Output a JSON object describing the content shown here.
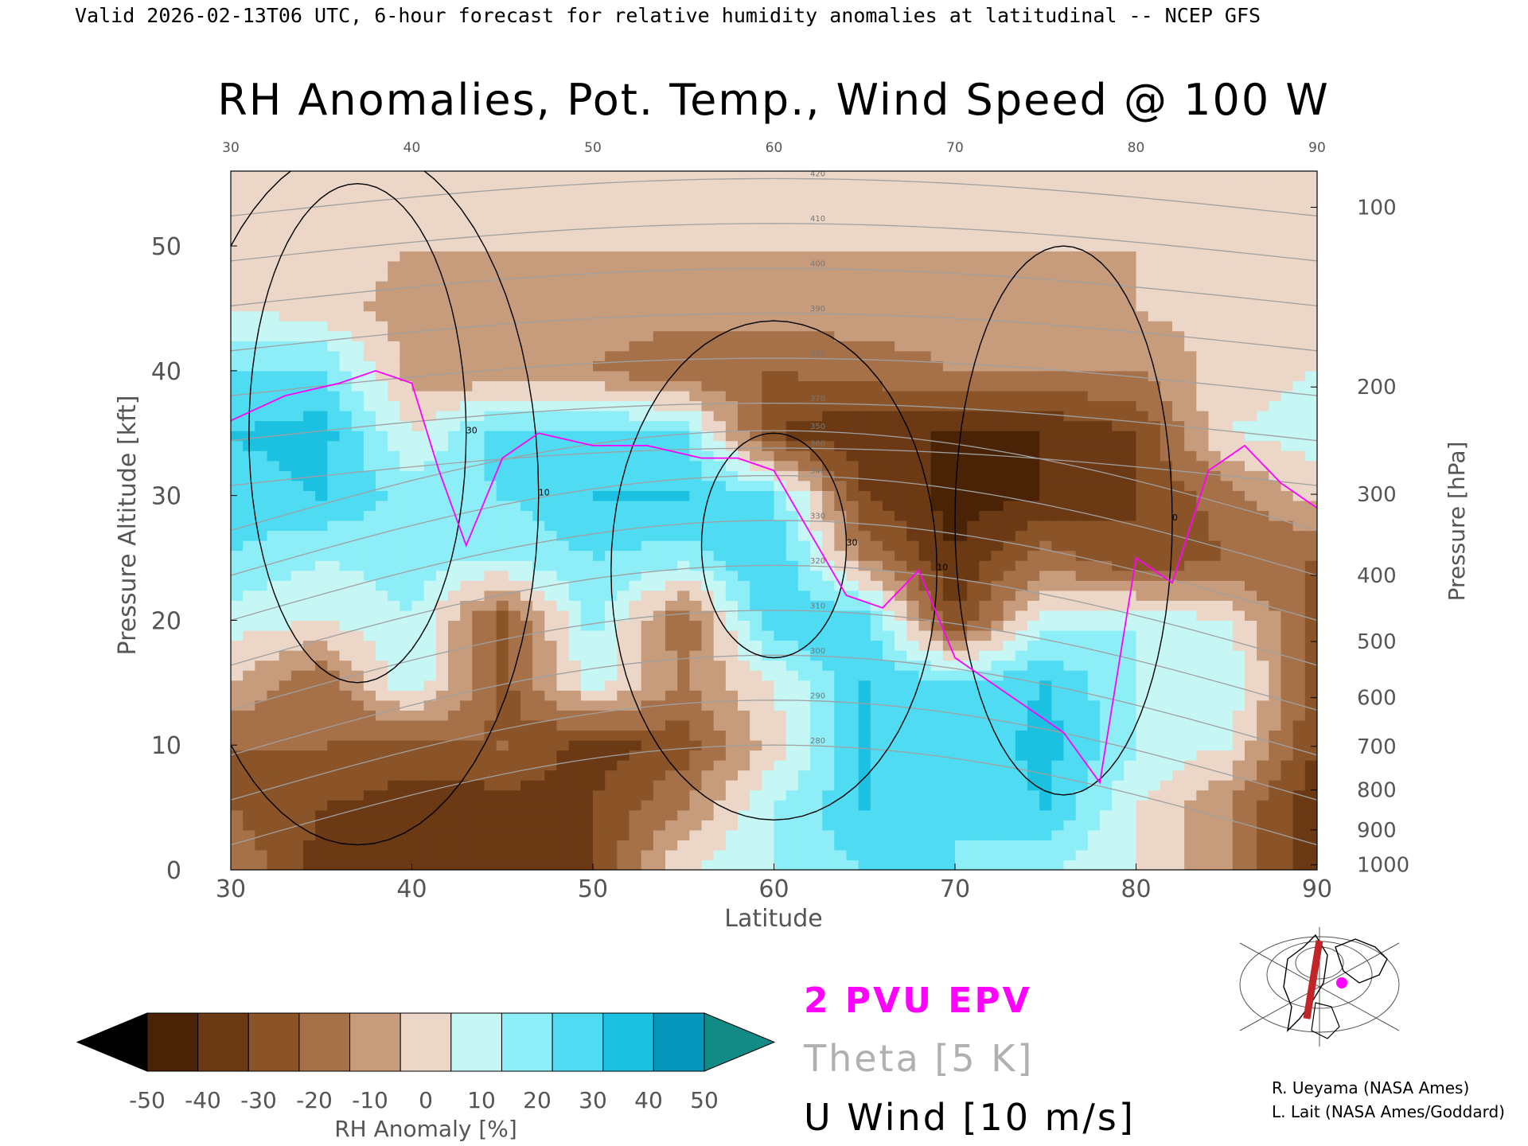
{
  "header": {
    "valid_line": "Valid 2026-02-13T06 UTC, 6-hour forecast for relative humidity anomalies at latitudinal -- NCEP GFS"
  },
  "chart_data": {
    "type": "heatmap",
    "title": "RH Anomalies, Pot. Temp., Wind Speed @ 100 W",
    "xlabel": "Latitude",
    "ylabel": "Pressure Altitude [kft]",
    "y2label": "Pressure [hPa]",
    "xlim": [
      30,
      90
    ],
    "ylim": [
      0,
      56
    ],
    "x_ticks": [
      "30",
      "40",
      "50",
      "60",
      "70",
      "80",
      "90"
    ],
    "y_ticks": [
      "0",
      "10",
      "20",
      "30",
      "40",
      "50"
    ],
    "y_tick_values": [
      0,
      10,
      20,
      30,
      40,
      50
    ],
    "pressure_ticks": [
      "100",
      "200",
      "300",
      "400",
      "500",
      "600",
      "700",
      "800",
      "900",
      "1000"
    ],
    "pressure_tick_kft": [
      53.1,
      38.7,
      30.1,
      23.6,
      18.3,
      13.8,
      9.9,
      6.4,
      3.2,
      0.4
    ],
    "colorbar": {
      "label": "RH Anomaly [%]",
      "tick_labels": [
        "-50",
        "-40",
        "-30",
        "-20",
        "-10",
        "0",
        "10",
        "20",
        "30",
        "40",
        "50"
      ],
      "colors": [
        "#4a2306",
        "#6b3914",
        "#8a5428",
        "#a67048",
        "#c69c7c",
        "#ecd6c8",
        "#c6f7f5",
        "#8eeef7",
        "#4fdcf2",
        "#1cc0e0",
        "#0696bc"
      ],
      "under_color": "#000000",
      "over_color": "#128a86"
    },
    "rh_anomaly_grid": {
      "lat": [
        30,
        35,
        40,
        45,
        50,
        55,
        60,
        65,
        70,
        75,
        80,
        85,
        90
      ],
      "kft": [
        0,
        5,
        10,
        15,
        20,
        25,
        30,
        35,
        40,
        45,
        50,
        55
      ],
      "values": [
        [
          -10,
          -35,
          -40,
          -30,
          -30,
          10,
          20,
          30,
          30,
          20,
          10,
          -10,
          -35
        ],
        [
          -20,
          -30,
          -35,
          -35,
          -30,
          -10,
          20,
          40,
          30,
          40,
          10,
          -10,
          -40
        ],
        [
          -20,
          -20,
          -25,
          -20,
          -35,
          -25,
          5,
          40,
          30,
          45,
          20,
          10,
          -30
        ],
        [
          0,
          -20,
          20,
          -25,
          15,
          -10,
          10,
          40,
          30,
          40,
          20,
          20,
          -25
        ],
        [
          15,
          10,
          20,
          -25,
          25,
          -20,
          40,
          35,
          -30,
          15,
          20,
          10,
          -25
        ],
        [
          30,
          20,
          25,
          20,
          30,
          25,
          40,
          -10,
          -40,
          -15,
          -30,
          -20,
          -20
        ],
        [
          35,
          40,
          25,
          30,
          40,
          40,
          30,
          -30,
          -45,
          -40,
          -30,
          -15,
          5
        ],
        [
          40,
          45,
          10,
          35,
          35,
          30,
          -30,
          -40,
          -40,
          -40,
          -30,
          10,
          15
        ],
        [
          30,
          30,
          -5,
          -10,
          -10,
          -20,
          -20,
          -15,
          -10,
          -10,
          -10,
          5,
          10
        ],
        [
          10,
          5,
          -5,
          -5,
          -5,
          -5,
          -5,
          -5,
          -5,
          -5,
          0,
          5,
          5
        ],
        [
          5,
          5,
          0,
          0,
          0,
          0,
          0,
          0,
          0,
          0,
          0,
          0,
          0
        ],
        [
          5,
          0,
          0,
          0,
          0,
          0,
          0,
          0,
          0,
          0,
          0,
          0,
          0
        ]
      ]
    },
    "theta": {
      "label": "Theta [5 K]",
      "color": "#a0a0a0",
      "contour_labels": [
        "280",
        "290",
        "300",
        "310",
        "320",
        "330",
        "340",
        "350",
        "360",
        "370",
        "380",
        "390",
        "400",
        "410",
        "420"
      ]
    },
    "u_wind": {
      "label": "U Wind [10 m/s]",
      "color": "#000000",
      "contour_labels": [
        "0",
        "10",
        "30"
      ]
    },
    "epv": {
      "label": "2 PVU EPV",
      "color": "#ff00ff",
      "lat": [
        30,
        33,
        36,
        38,
        40,
        41.5,
        43,
        45,
        47,
        50,
        53,
        56,
        58,
        60,
        62,
        64,
        66,
        68,
        70,
        73,
        76,
        78,
        80,
        82,
        84,
        86,
        88,
        90
      ],
      "kft": [
        36,
        38,
        39,
        40,
        39,
        32,
        26,
        33,
        35,
        34,
        34,
        33,
        33,
        32,
        27,
        22,
        21,
        24,
        17,
        14,
        11,
        7,
        25,
        23,
        32,
        34,
        31,
        29
      ]
    },
    "credits": [
      "R. Ueyama (NASA Ames)",
      "L. Lait (NASA Ames/Goddard)"
    ]
  }
}
